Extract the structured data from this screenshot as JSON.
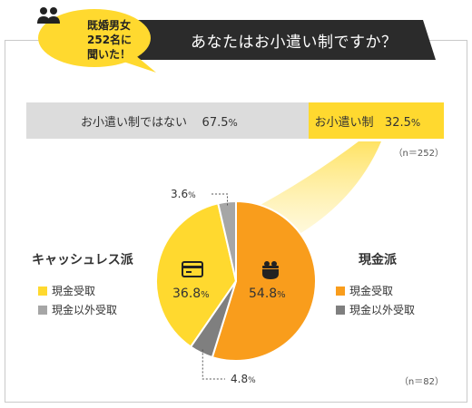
{
  "header": {
    "bubble_lines": [
      "既婚男女",
      "252名に",
      "聞いた！"
    ],
    "question": "あなたはお小遣い制ですか？"
  },
  "colors": {
    "yellow": "#ffd92f",
    "light_gray": "#dcdcdc",
    "orange": "#f99d1c",
    "mid_gray": "#a6a6a6",
    "dark_gray": "#7f7f7f",
    "title_bg": "#2b2b2b"
  },
  "icons": {
    "bubble": "people-icon",
    "cashless": "credit-card-icon",
    "cash": "coin-purse-icon"
  },
  "chart_data": [
    {
      "type": "bar",
      "orientation": "horizontal-stacked",
      "categories": [
        "お小遣い制ではない",
        "お小遣い制"
      ],
      "values": [
        67.5,
        32.5
      ],
      "unit": "%",
      "display_values": [
        "67.5",
        "32.5"
      ],
      "note": "（n＝252）"
    },
    {
      "type": "pie",
      "slices": [
        {
          "label": "現金受取",
          "group": "現金派",
          "value": 54.8,
          "display": "54.8",
          "color": "#f99d1c"
        },
        {
          "label": "現金以外受取",
          "group": "現金派",
          "value": 4.8,
          "display": "4.8",
          "color": "#7f7f7f"
        },
        {
          "label": "現金受取",
          "group": "キャッシュレス派",
          "value": 36.8,
          "display": "36.8",
          "color": "#ffd92f"
        },
        {
          "label": "現金以外受取",
          "group": "キャッシュレス派",
          "value": 3.6,
          "display": "3.6",
          "color": "#a6a6a6"
        }
      ],
      "unit": "%",
      "note": "（n＝82）"
    }
  ],
  "legends": {
    "cashless": {
      "title": "キャッシュレス派",
      "items": [
        {
          "label": "現金受取",
          "color": "#ffd92f"
        },
        {
          "label": "現金以外受取",
          "color": "#a6a6a6"
        }
      ]
    },
    "cash": {
      "title": "現金派",
      "items": [
        {
          "label": "現金受取",
          "color": "#f99d1c"
        },
        {
          "label": "現金以外受取",
          "color": "#7f7f7f"
        }
      ]
    }
  }
}
